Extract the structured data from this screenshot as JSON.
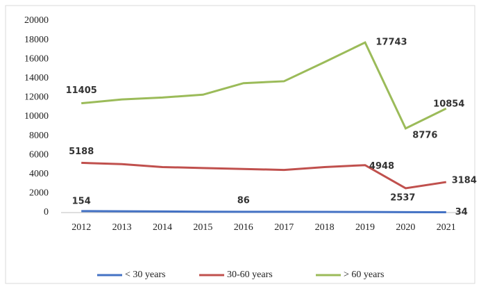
{
  "chart_data": {
    "type": "line",
    "categories": [
      "2012",
      "2013",
      "2014",
      "2015",
      "2016",
      "2017",
      "2018",
      "2019",
      "2020",
      "2021"
    ],
    "series": [
      {
        "name": "< 30 years",
        "color": "#4472c4",
        "values": [
          154,
          140,
          120,
          95,
          86,
          80,
          70,
          60,
          45,
          34
        ],
        "value_labels": [
          "154",
          null,
          null,
          null,
          "86",
          null,
          null,
          null,
          null,
          "34"
        ]
      },
      {
        "name": "30-60 years",
        "color": "#c0504d",
        "values": [
          5188,
          5050,
          4750,
          4650,
          4550,
          4450,
          4750,
          4948,
          2537,
          3184
        ],
        "value_labels": [
          "5188",
          null,
          null,
          null,
          null,
          null,
          null,
          "4948",
          "2537",
          "3184"
        ]
      },
      {
        "name": "> 60 years",
        "color": "#9bbb59",
        "values": [
          11405,
          11800,
          12000,
          12300,
          13500,
          13700,
          15700,
          17743,
          8776,
          10854
        ],
        "value_labels": [
          "11405",
          null,
          null,
          null,
          null,
          null,
          null,
          "17743",
          "8776",
          "10854"
        ]
      }
    ],
    "ylim": [
      0,
      20000
    ],
    "yticks": [
      0,
      2000,
      4000,
      6000,
      8000,
      10000,
      12000,
      14000,
      16000,
      18000,
      20000
    ],
    "legend": "bottom"
  }
}
